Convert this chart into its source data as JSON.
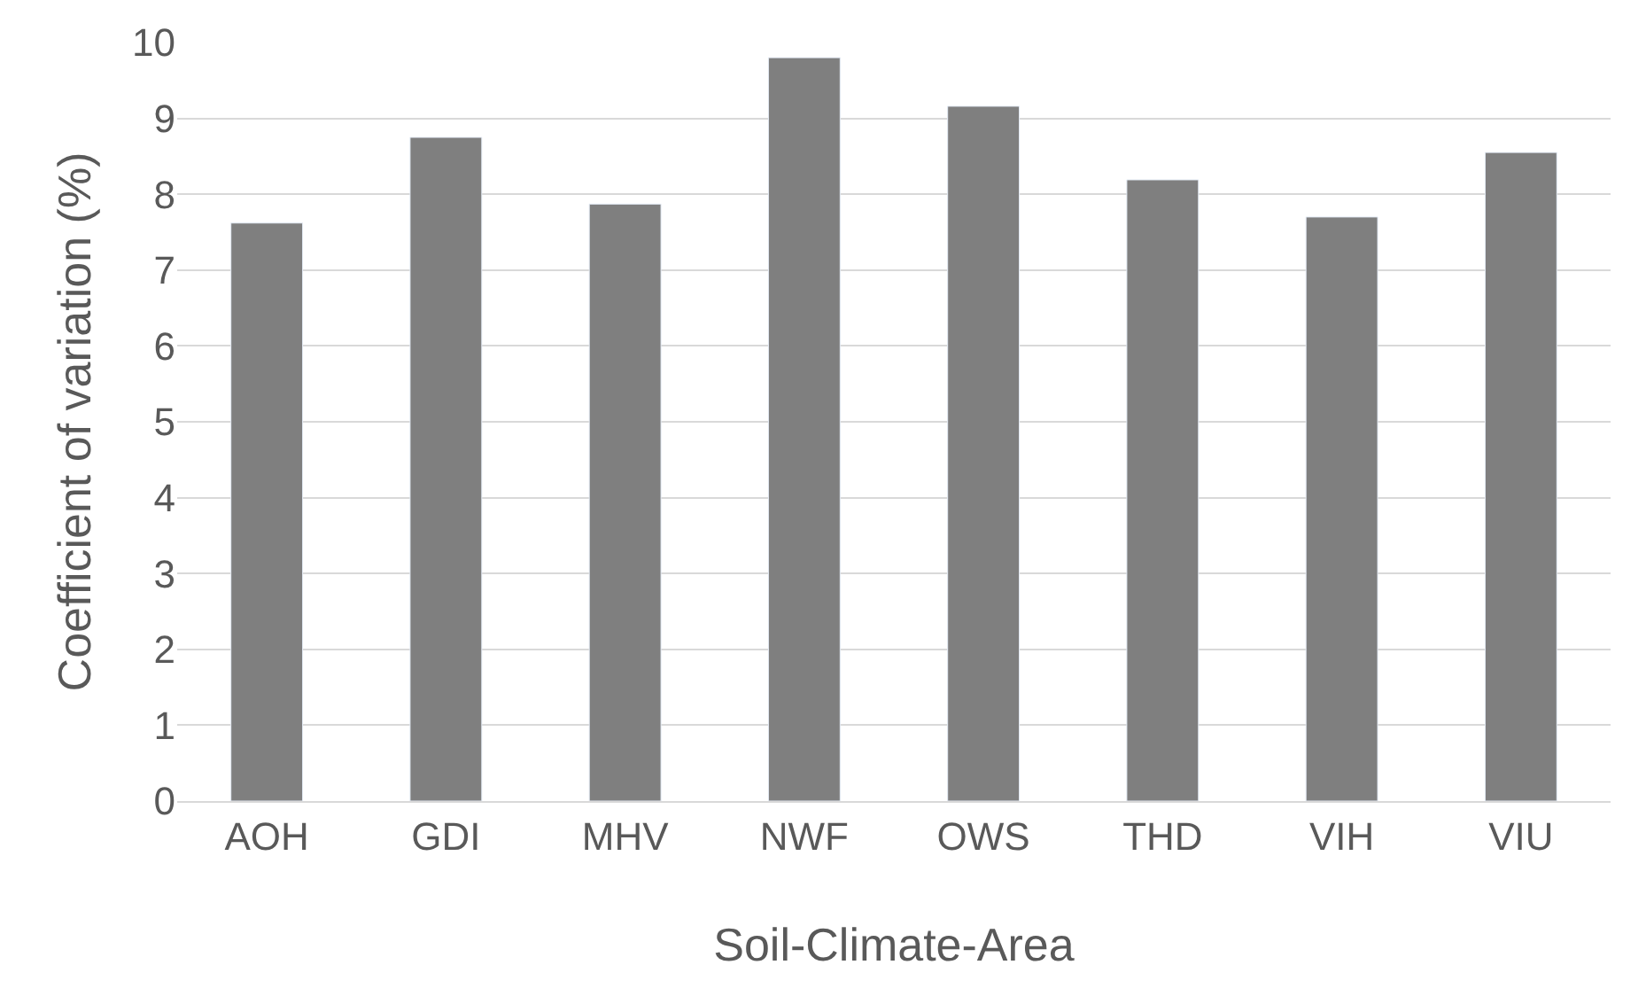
{
  "chart_data": {
    "type": "bar",
    "xlabel": "Soil-Climate-Area",
    "ylabel": "Coefficient of variation (%)",
    "categories": [
      "AOH",
      "GDI",
      "MHV",
      "NWF",
      "OWS",
      "THD",
      "VIH",
      "VIU"
    ],
    "values": [
      7.62,
      8.75,
      7.87,
      9.8,
      9.16,
      8.19,
      7.7,
      8.55
    ],
    "color": "#7f7f7f",
    "ylim": [
      0,
      10
    ],
    "yticks": [
      0,
      1,
      2,
      3,
      4,
      5,
      6,
      7,
      8,
      9,
      10
    ],
    "grid": "y"
  }
}
